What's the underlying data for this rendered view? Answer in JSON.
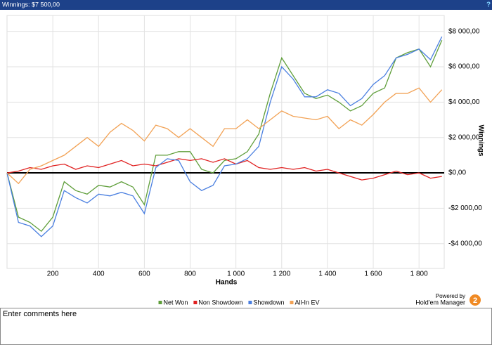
{
  "header": {
    "title": "Winnings: $7 500,00",
    "help": "?"
  },
  "chart_data": {
    "type": "line",
    "xlabel": "Hands",
    "ylabel": "Winnings",
    "x": [
      0,
      50,
      100,
      150,
      200,
      250,
      300,
      350,
      400,
      450,
      500,
      550,
      600,
      650,
      700,
      750,
      800,
      850,
      900,
      950,
      1000,
      1050,
      1100,
      1150,
      1200,
      1250,
      1300,
      1350,
      1400,
      1450,
      1500,
      1550,
      1600,
      1650,
      1700,
      1750,
      1800,
      1850,
      1900
    ],
    "series": [
      {
        "name": "Net Won",
        "color": "#5f9e3a",
        "values": [
          0,
          -2500,
          -2800,
          -3300,
          -2500,
          -500,
          -1000,
          -1200,
          -700,
          -800,
          -500,
          -800,
          -1800,
          1000,
          1000,
          1200,
          1200,
          200,
          0,
          700,
          800,
          1200,
          2200,
          4500,
          6500,
          5500,
          4500,
          4200,
          4400,
          4000,
          3500,
          3800,
          4500,
          4800,
          6500,
          6800,
          7000,
          6000,
          7500
        ]
      },
      {
        "name": "Non Showdown",
        "color": "#e02020",
        "values": [
          0,
          100,
          300,
          200,
          400,
          500,
          200,
          400,
          300,
          500,
          700,
          400,
          500,
          400,
          600,
          800,
          700,
          800,
          600,
          800,
          500,
          700,
          300,
          200,
          300,
          200,
          300,
          100,
          200,
          0,
          -200,
          -400,
          -300,
          -100,
          100,
          -100,
          0,
          -300,
          -200
        ]
      },
      {
        "name": "Showdown",
        "color": "#4a7fe0",
        "values": [
          0,
          -2800,
          -3000,
          -3600,
          -3000,
          -1000,
          -1400,
          -1700,
          -1200,
          -1300,
          -1100,
          -1300,
          -2300,
          300,
          800,
          700,
          -500,
          -1000,
          -700,
          400,
          500,
          800,
          1500,
          4000,
          6000,
          5300,
          4300,
          4300,
          4700,
          4500,
          3800,
          4200,
          5000,
          5500,
          6500,
          6700,
          7000,
          6400,
          7700
        ]
      },
      {
        "name": "All-In EV",
        "color": "#f2a255",
        "values": [
          0,
          -600,
          200,
          400,
          700,
          1000,
          1500,
          2000,
          1500,
          2300,
          2800,
          2400,
          1800,
          2700,
          2500,
          2000,
          2500,
          2000,
          1500,
          2500,
          2500,
          3000,
          2500,
          3000,
          3500,
          3200,
          3100,
          3000,
          3200,
          2500,
          3000,
          2700,
          3300,
          4000,
          4500,
          4500,
          4800,
          4000,
          4700
        ]
      }
    ],
    "xlim": [
      0,
      1910
    ],
    "ylim": [
      -5400,
      8900
    ],
    "xticks": [
      200,
      400,
      600,
      800,
      {
        "value": 1000,
        "label": "1 000"
      },
      {
        "value": 1200,
        "label": "1 200"
      },
      {
        "value": 1400,
        "label": "1 400"
      },
      {
        "value": 1600,
        "label": "1 600"
      },
      {
        "value": 1800,
        "label": "1 800"
      }
    ],
    "yticks": [
      {
        "value": -4000,
        "label": "-$4 000,00"
      },
      {
        "value": -2000,
        "label": "-$2 000,00"
      },
      {
        "value": 0,
        "label": "$0,00"
      },
      {
        "value": 2000,
        "label": "$2 000,00"
      },
      {
        "value": 4000,
        "label": "$4 000,00"
      },
      {
        "value": 6000,
        "label": "$6 000,00"
      },
      {
        "value": 8000,
        "label": "$8 000,00"
      }
    ],
    "grid": true,
    "legend": "bottom"
  },
  "branding": {
    "line1": "Powered by",
    "line2": "Hold'em Manager",
    "badge": "2"
  },
  "comments": {
    "placeholder": "Enter comments here"
  }
}
